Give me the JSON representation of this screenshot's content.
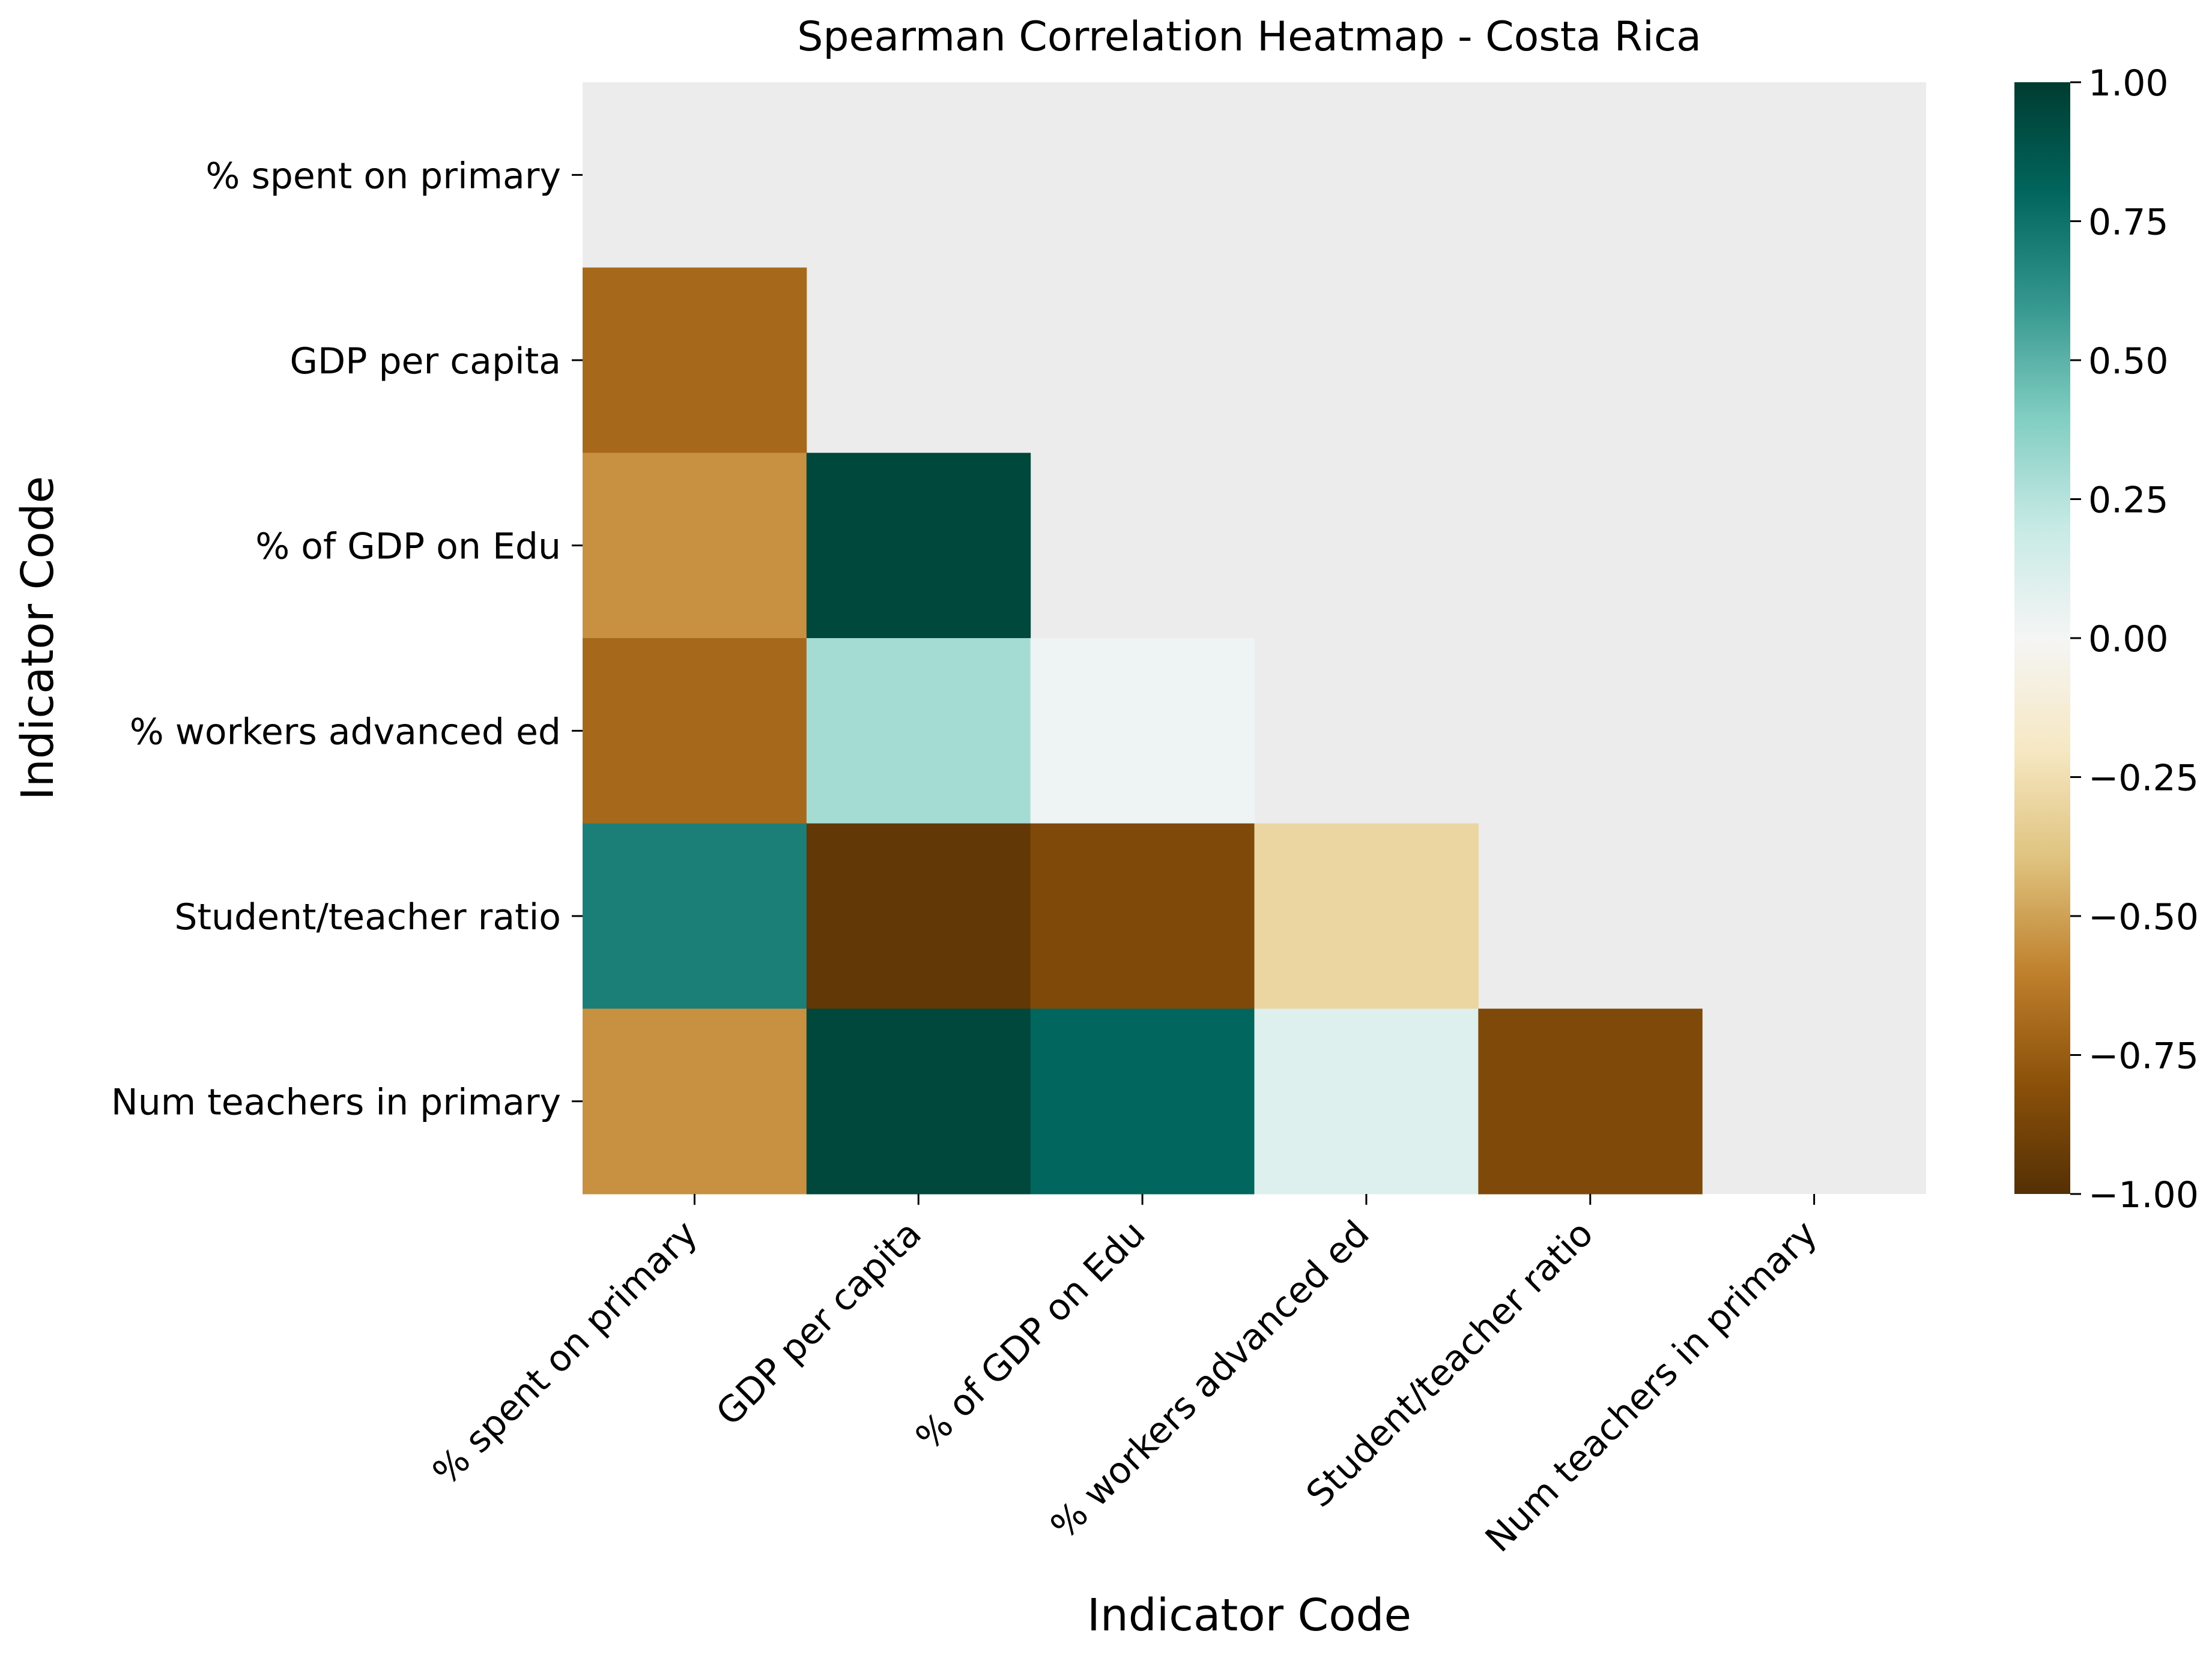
{
  "chart_data": {
    "type": "heatmap",
    "title": "Spearman Correlation Heatmap - Costa Rica",
    "xlabel": "Indicator Code",
    "ylabel": "Indicator Code",
    "categories": [
      "% spent on primary",
      "GDP per capita",
      "% of GDP on Edu",
      "% workers advanced ed",
      "Student/teacher ratio",
      "Num teachers in primary"
    ],
    "mask": "upper triangle including diagonal (shown light gray)",
    "cells": [
      {
        "row": 1,
        "col": 0,
        "value": -0.7
      },
      {
        "row": 2,
        "col": 0,
        "value": -0.55
      },
      {
        "row": 2,
        "col": 1,
        "value": 0.95
      },
      {
        "row": 3,
        "col": 0,
        "value": -0.7
      },
      {
        "row": 3,
        "col": 1,
        "value": 0.3
      },
      {
        "row": 3,
        "col": 2,
        "value": 0.03
      },
      {
        "row": 4,
        "col": 0,
        "value": 0.7
      },
      {
        "row": 4,
        "col": 1,
        "value": -0.95
      },
      {
        "row": 4,
        "col": 2,
        "value": -0.85
      },
      {
        "row": 4,
        "col": 3,
        "value": -0.3
      },
      {
        "row": 5,
        "col": 0,
        "value": -0.55
      },
      {
        "row": 5,
        "col": 1,
        "value": 0.95
      },
      {
        "row": 5,
        "col": 2,
        "value": 0.8
      },
      {
        "row": 5,
        "col": 3,
        "value": 0.1
      },
      {
        "row": 5,
        "col": 4,
        "value": -0.85
      }
    ],
    "colorbar": {
      "colormap": "BrBG",
      "range": [
        -1.0,
        1.0
      ],
      "ticks": [
        "1.00",
        "0.75",
        "0.50",
        "0.25",
        "0.00",
        "−0.25",
        "−0.50",
        "−0.75",
        "−1.00"
      ]
    },
    "colors": {
      "mask": "#ececec",
      "stops": [
        "#543005",
        "#8c510a",
        "#bf812d",
        "#dfc27d",
        "#f6e8c3",
        "#f5f5f5",
        "#c7eae5",
        "#80cdc1",
        "#35978f",
        "#01665e",
        "#003c30"
      ]
    },
    "grid": false
  }
}
